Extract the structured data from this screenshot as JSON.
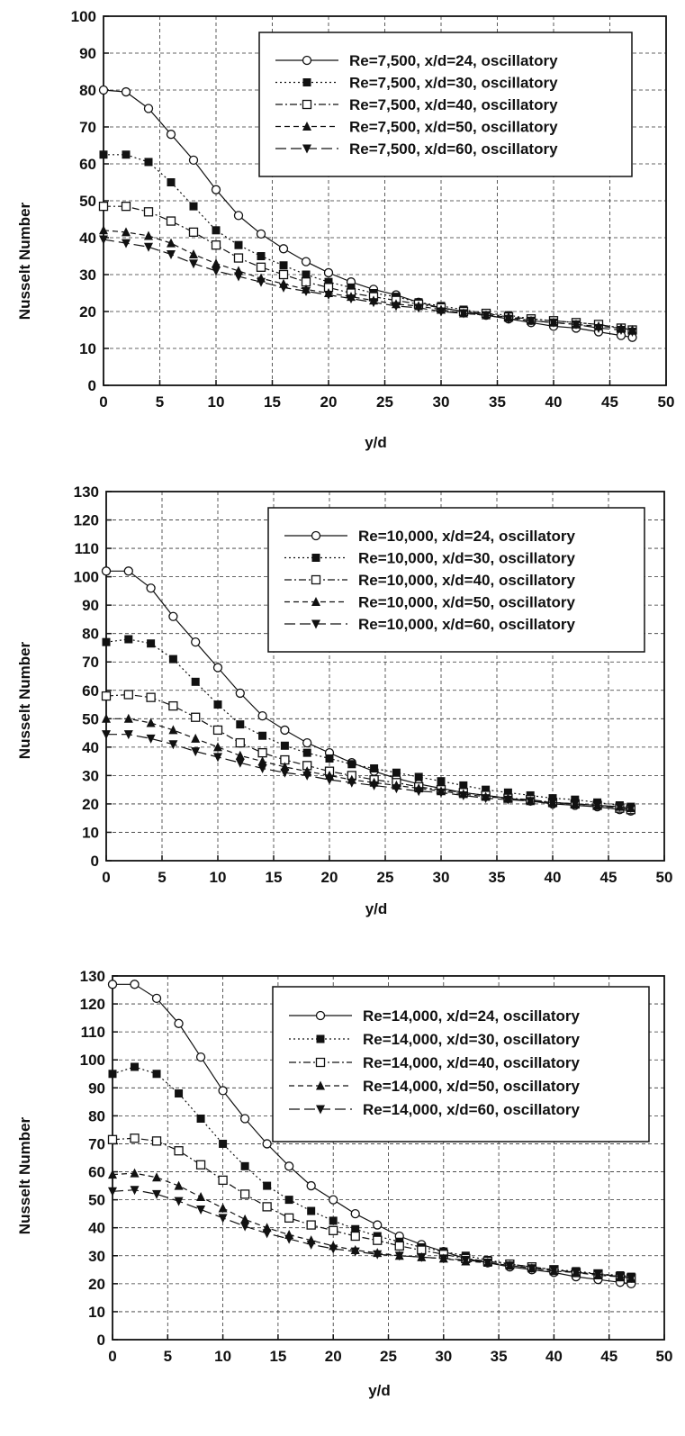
{
  "chart_data": [
    {
      "type": "line",
      "xlabel": "y/d",
      "ylabel": "Nusselt Number",
      "xlim": [
        0,
        50
      ],
      "ylim": [
        0,
        100
      ],
      "xticks": [
        "0",
        "5",
        "10",
        "15",
        "20",
        "25",
        "30",
        "35",
        "40",
        "45",
        "50"
      ],
      "yticks": [
        "0",
        "10",
        "20",
        "30",
        "40",
        "50",
        "60",
        "70",
        "80",
        "90",
        "100"
      ],
      "grid": true,
      "legend_position": "top-right",
      "series": [
        {
          "name": "Re=7,500, x/d=24, oscillatory",
          "marker": "open-circle",
          "line": "solid",
          "x": [
            0,
            2,
            4,
            6,
            8,
            10,
            12,
            14,
            16,
            18,
            20,
            22,
            24,
            26,
            28,
            30,
            32,
            34,
            36,
            38,
            40,
            42,
            44,
            46,
            47
          ],
          "y": [
            80,
            79.5,
            75,
            68,
            61,
            53,
            46,
            41,
            37,
            33.5,
            30.5,
            28,
            26,
            24.5,
            22.5,
            21,
            20,
            19,
            18,
            17,
            16,
            15.5,
            14.5,
            13.5,
            13
          ]
        },
        {
          "name": "Re=7,500, x/d=30, oscillatory",
          "marker": "filled-square",
          "line": "dotted",
          "x": [
            0,
            2,
            4,
            6,
            8,
            10,
            12,
            14,
            16,
            18,
            20,
            22,
            24,
            26,
            28,
            30,
            32,
            34,
            36,
            38,
            40,
            42,
            44,
            46,
            47
          ],
          "y": [
            62.5,
            62.5,
            60.5,
            55,
            48.5,
            42,
            38,
            35,
            32.5,
            30,
            28,
            26.5,
            25,
            24,
            22.5,
            21.5,
            20.5,
            19.5,
            19,
            18,
            17.5,
            17,
            16.5,
            15.5,
            15
          ]
        },
        {
          "name": "Re=7,500, x/d=40, oscillatory",
          "marker": "open-square",
          "line": "dash-dot",
          "x": [
            0,
            2,
            4,
            6,
            8,
            10,
            12,
            14,
            16,
            18,
            20,
            22,
            24,
            26,
            28,
            30,
            32,
            34,
            36,
            38,
            40,
            42,
            44,
            46,
            47
          ],
          "y": [
            48.5,
            48.5,
            47,
            44.5,
            41.5,
            38,
            34.5,
            32,
            30,
            28,
            26.5,
            25,
            24,
            23,
            22,
            21,
            20,
            19.5,
            18.5,
            18,
            17.5,
            17,
            16.5,
            15.5,
            15
          ]
        },
        {
          "name": "Re=7,500, x/d=50, oscillatory",
          "marker": "filled-triangle-up",
          "line": "dashed",
          "x": [
            0,
            2,
            4,
            6,
            8,
            10,
            12,
            14,
            16,
            18,
            20,
            22,
            24,
            26,
            28,
            30,
            32,
            34,
            36,
            38,
            40,
            42,
            44,
            46,
            47
          ],
          "y": [
            42,
            41.5,
            40.5,
            38.5,
            35.5,
            33,
            31,
            29,
            27.5,
            26,
            25,
            24,
            23,
            22,
            21.5,
            20.5,
            19.5,
            19,
            18.5,
            17.5,
            17,
            16.5,
            16,
            15.5,
            15
          ]
        },
        {
          "name": "Re=7,500, x/d=60, oscillatory",
          "marker": "filled-triangle-down",
          "line": "long-dash",
          "x": [
            0,
            2,
            4,
            6,
            8,
            10,
            12,
            14,
            16,
            18,
            20,
            22,
            24,
            26,
            28,
            30,
            32,
            34,
            36,
            38,
            40,
            42,
            44,
            46,
            47
          ],
          "y": [
            39.5,
            38.5,
            37.5,
            35.5,
            33,
            31,
            29.5,
            28,
            26.5,
            25.5,
            24.5,
            23.5,
            22.5,
            21.5,
            21,
            20,
            19.5,
            19,
            18,
            17.5,
            17,
            16.5,
            15.5,
            15,
            14.5
          ]
        }
      ]
    },
    {
      "type": "line",
      "xlabel": "y/d",
      "ylabel": "Nusselt Number",
      "xlim": [
        0,
        50
      ],
      "ylim": [
        0,
        130
      ],
      "xticks": [
        "0",
        "5",
        "10",
        "15",
        "20",
        "25",
        "30",
        "35",
        "40",
        "45",
        "50"
      ],
      "yticks": [
        "0",
        "10",
        "20",
        "30",
        "40",
        "50",
        "60",
        "70",
        "80",
        "90",
        "100",
        "110",
        "120",
        "130"
      ],
      "grid": true,
      "legend_position": "top-right",
      "series": [
        {
          "name": "Re=10,000, x/d=24, oscillatory",
          "marker": "open-circle",
          "line": "solid",
          "x": [
            0,
            2,
            4,
            6,
            8,
            10,
            12,
            14,
            16,
            18,
            20,
            22,
            24,
            26,
            28,
            30,
            32,
            34,
            36,
            38,
            40,
            42,
            44,
            46,
            47
          ],
          "y": [
            102,
            102,
            96,
            86,
            77,
            68,
            59,
            51,
            46,
            41.5,
            38,
            34.5,
            31.5,
            29,
            27,
            25.5,
            24,
            23,
            22,
            21,
            20,
            19.5,
            19,
            18,
            17.5
          ]
        },
        {
          "name": "Re=10,000, x/d=30, oscillatory",
          "marker": "filled-square",
          "line": "dotted",
          "x": [
            0,
            2,
            4,
            6,
            8,
            10,
            12,
            14,
            16,
            18,
            20,
            22,
            24,
            26,
            28,
            30,
            32,
            34,
            36,
            38,
            40,
            42,
            44,
            46,
            47
          ],
          "y": [
            77,
            78,
            76.5,
            71,
            63,
            55,
            48,
            44,
            40.5,
            38,
            36,
            34,
            32.5,
            31,
            29.5,
            28,
            26.5,
            25,
            24,
            23,
            22,
            21.5,
            20.5,
            19.5,
            19
          ]
        },
        {
          "name": "Re=10,000, x/d=40, oscillatory",
          "marker": "open-square",
          "line": "dash-dot",
          "x": [
            0,
            2,
            4,
            6,
            8,
            10,
            12,
            14,
            16,
            18,
            20,
            22,
            24,
            26,
            28,
            30,
            32,
            34,
            36,
            38,
            40,
            42,
            44,
            46,
            47
          ],
          "y": [
            58,
            58.5,
            57.5,
            54.5,
            50.5,
            46,
            41.5,
            38,
            35.5,
            33.5,
            31.5,
            30,
            28.5,
            27.5,
            26,
            25,
            24,
            23,
            22,
            21.5,
            20.5,
            20,
            19.5,
            18.5,
            18
          ]
        },
        {
          "name": "Re=10,000, x/d=50, oscillatory",
          "marker": "filled-triangle-up",
          "line": "dashed",
          "x": [
            0,
            2,
            4,
            6,
            8,
            10,
            12,
            14,
            16,
            18,
            20,
            22,
            24,
            26,
            28,
            30,
            32,
            34,
            36,
            38,
            40,
            42,
            44,
            46,
            47
          ],
          "y": [
            50,
            50,
            48.5,
            46,
            43,
            40,
            37,
            35,
            33,
            31.5,
            30,
            28.5,
            27.5,
            26.5,
            25.5,
            24.5,
            23.5,
            22.5,
            22,
            21,
            20.5,
            20,
            19.5,
            19,
            18.5
          ]
        },
        {
          "name": "Re=10,000, x/d=60, oscillatory",
          "marker": "filled-triangle-down",
          "line": "long-dash",
          "x": [
            0,
            2,
            4,
            6,
            8,
            10,
            12,
            14,
            16,
            18,
            20,
            22,
            24,
            26,
            28,
            30,
            32,
            34,
            36,
            38,
            40,
            42,
            44,
            46,
            47
          ],
          "y": [
            44.5,
            44.5,
            43,
            41,
            38.5,
            36.5,
            34.5,
            32.5,
            31,
            30,
            28.5,
            27.5,
            26.5,
            25.5,
            24.5,
            24,
            23,
            22,
            21.5,
            21,
            20.5,
            20,
            19.5,
            19,
            18.5
          ]
        }
      ]
    },
    {
      "type": "line",
      "xlabel": "y/d",
      "ylabel": "Nusselt Number",
      "xlim": [
        0,
        50
      ],
      "ylim": [
        0,
        130
      ],
      "xticks": [
        "0",
        "5",
        "10",
        "15",
        "20",
        "25",
        "30",
        "35",
        "40",
        "45",
        "50"
      ],
      "yticks": [
        "0",
        "10",
        "20",
        "30",
        "40",
        "50",
        "60",
        "70",
        "80",
        "90",
        "100",
        "110",
        "120",
        "130"
      ],
      "grid": true,
      "legend_position": "top-right",
      "series": [
        {
          "name": "Re=14,000, x/d=24, oscillatory",
          "marker": "open-circle",
          "line": "solid",
          "x": [
            0,
            2,
            4,
            6,
            8,
            10,
            12,
            14,
            16,
            18,
            20,
            22,
            24,
            26,
            28,
            30,
            32,
            34,
            36,
            38,
            40,
            42,
            44,
            46,
            47
          ],
          "y": [
            127,
            127,
            122,
            113,
            101,
            89,
            79,
            70,
            62,
            55,
            50,
            45,
            41,
            37,
            34,
            31.5,
            29,
            27.5,
            26,
            25,
            24,
            22.5,
            21.5,
            20.5,
            20
          ]
        },
        {
          "name": "Re=14,000, x/d=30, oscillatory",
          "marker": "filled-square",
          "line": "dotted",
          "x": [
            0,
            2,
            4,
            6,
            8,
            10,
            12,
            14,
            16,
            18,
            20,
            22,
            24,
            26,
            28,
            30,
            32,
            34,
            36,
            38,
            40,
            42,
            44,
            46,
            47
          ],
          "y": [
            95,
            97.5,
            95,
            88,
            79,
            70,
            62,
            55,
            50,
            46,
            42.5,
            39.5,
            37,
            35,
            33,
            31.5,
            30,
            28.5,
            27,
            26,
            25,
            24.5,
            23.5,
            23,
            22.5
          ]
        },
        {
          "name": "Re=14,000, x/d=40, oscillatory",
          "marker": "open-square",
          "line": "dash-dot",
          "x": [
            0,
            2,
            4,
            6,
            8,
            10,
            12,
            14,
            16,
            18,
            20,
            22,
            24,
            26,
            28,
            30,
            32,
            34,
            36,
            38,
            40,
            42,
            44,
            46,
            47
          ],
          "y": [
            71.5,
            72,
            71,
            67.5,
            62.5,
            57,
            52,
            47.5,
            43.5,
            41,
            39,
            37,
            35.5,
            33.5,
            32,
            30.5,
            29,
            28,
            27,
            26,
            25,
            24,
            23.5,
            22.5,
            22
          ]
        },
        {
          "name": "Re=14,000, x/d=50, oscillatory",
          "marker": "filled-triangle-up",
          "line": "dashed",
          "x": [
            0,
            2,
            4,
            6,
            8,
            10,
            12,
            14,
            16,
            18,
            20,
            22,
            24,
            26,
            28,
            30,
            32,
            34,
            36,
            38,
            40,
            42,
            44,
            46,
            47
          ],
          "y": [
            59,
            59.5,
            58,
            55,
            51,
            47,
            43,
            40,
            37.5,
            35.5,
            33.5,
            32,
            31,
            30,
            29.5,
            29,
            28,
            27.5,
            26.5,
            25.5,
            24.5,
            24,
            23,
            22.5,
            22
          ]
        },
        {
          "name": "Re=14,000, x/d=60, oscillatory",
          "marker": "filled-triangle-down",
          "line": "long-dash",
          "x": [
            0,
            2,
            4,
            6,
            8,
            10,
            12,
            14,
            16,
            18,
            20,
            22,
            24,
            26,
            28,
            30,
            32,
            34,
            36,
            38,
            40,
            42,
            44,
            46,
            47
          ],
          "y": [
            53,
            53.5,
            52,
            49.5,
            46.5,
            43.5,
            40.5,
            38,
            36,
            34,
            32.5,
            31.5,
            30.5,
            30,
            29.5,
            29,
            28.5,
            27.5,
            26.5,
            25.5,
            25,
            24,
            23.5,
            22.5,
            22
          ]
        }
      ]
    }
  ]
}
